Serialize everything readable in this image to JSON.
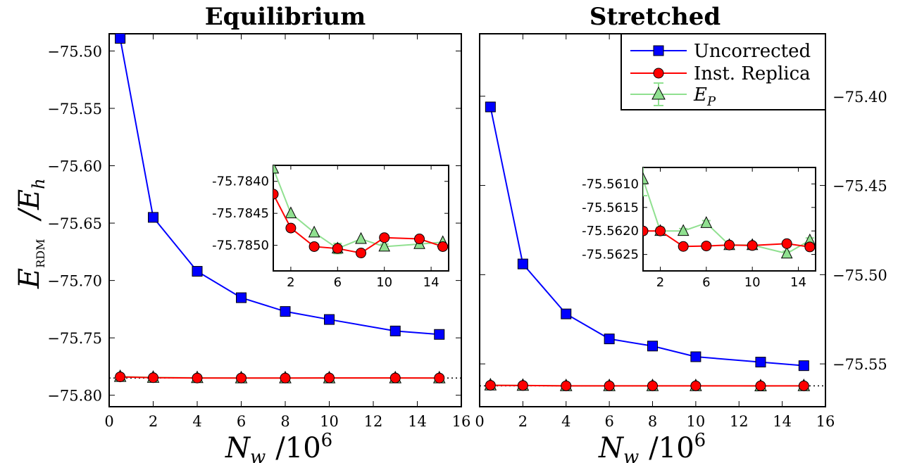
{
  "colors": {
    "uncorrected": "#0000ff",
    "replica": "#ff0000",
    "ep_fill": "#90e090",
    "ep_line": "#90e090",
    "marker_edge": "#000000"
  },
  "axes_text": {
    "ylabel_main": "E",
    "ylabel_sub": "RDM",
    "ylabel_unit": "/E",
    "ylabel_unit_sub": "h",
    "xlabel_main": "N",
    "xlabel_sub": "w",
    "xlabel_unit": "/10",
    "xlabel_exp": "6"
  },
  "legend": {
    "placement": "top-right of right panel",
    "entries": [
      {
        "label": "Uncorrected",
        "marker": "square",
        "color": "#0000ff"
      },
      {
        "label": "Inst. Replica",
        "marker": "circle",
        "color": "#ff0000"
      },
      {
        "label": "E",
        "label_sub": "P",
        "marker": "triangle",
        "color": "#90e090"
      }
    ]
  },
  "chart_data": [
    {
      "type": "line",
      "title": "Equilibrium",
      "xlim": [
        0,
        16
      ],
      "ylim": [
        -75.81,
        -75.485
      ],
      "xticks": [
        "0",
        "2",
        "4",
        "6",
        "8",
        "10",
        "12",
        "14",
        "16"
      ],
      "yticks": [
        "-75.50",
        "-75.55",
        "-75.60",
        "-75.65",
        "-75.70",
        "-75.75",
        "-75.80"
      ],
      "reference_line": -75.785,
      "series": [
        {
          "name": "Uncorrected",
          "x": [
            0.5,
            2,
            4,
            6,
            8,
            10,
            13,
            15
          ],
          "y": [
            -75.489,
            -75.645,
            -75.692,
            -75.715,
            -75.727,
            -75.734,
            -75.744,
            -75.747
          ]
        },
        {
          "name": "Inst. Replica",
          "x": [
            0.5,
            2,
            4,
            6,
            8,
            10,
            13,
            15
          ],
          "y": [
            -75.784,
            -75.7847,
            -75.785,
            -75.785,
            -75.785,
            -75.7849,
            -75.7849,
            -75.785
          ]
        },
        {
          "name": "E_P",
          "x": [
            0.5,
            2,
            4,
            6,
            8,
            10,
            13,
            15
          ],
          "y": [
            -75.7838,
            -75.7845,
            -75.7848,
            -75.785,
            -75.785,
            -75.785,
            -75.785,
            -75.785
          ]
        }
      ],
      "inset": {
        "xlim": [
          0.5,
          15.5
        ],
        "ylim": [
          -75.7854,
          -75.78375
        ],
        "xticks": [
          "2",
          "6",
          "10",
          "14"
        ],
        "yticks": [
          "-75.7840",
          "-75.7845",
          "-75.7850"
        ],
        "series": [
          {
            "name": "Inst. Replica",
            "x": [
              0.5,
              2,
              4,
              6,
              8,
              10,
              13,
              15
            ],
            "y": [
              -75.7842,
              -75.78473,
              -75.78502,
              -75.78505,
              -75.78512,
              -75.78488,
              -75.7849,
              -75.78502
            ]
          },
          {
            "name": "E_P",
            "x": [
              0.5,
              2,
              4,
              6,
              8,
              10,
              13,
              15
            ],
            "y": [
              -75.7838,
              -75.7845,
              -75.7848,
              -75.78505,
              -75.7849,
              -75.78502,
              -75.78498,
              -75.78495
            ],
            "err": [
              0,
              0,
              0,
              8e-05,
              0,
              4e-05,
              0,
              0
            ]
          }
        ]
      }
    },
    {
      "type": "line",
      "title": "Stretched",
      "xlim": [
        0,
        16
      ],
      "ylim": [
        -75.574,
        -75.365
      ],
      "xticks": [
        "0",
        "2",
        "4",
        "6",
        "8",
        "10",
        "12",
        "14",
        "16"
      ],
      "yticks": [
        "-75.40",
        "-75.45",
        "-75.50",
        "-75.55"
      ],
      "y_axis_side": "right",
      "reference_line": -75.5623,
      "series": [
        {
          "name": "Uncorrected",
          "x": [
            0.5,
            2,
            4,
            6,
            8,
            10,
            13,
            15
          ],
          "y": [
            -75.406,
            -75.494,
            -75.522,
            -75.536,
            -75.54,
            -75.546,
            -75.549,
            -75.551
          ]
        },
        {
          "name": "Inst. Replica",
          "x": [
            0.5,
            2,
            4,
            6,
            8,
            10,
            13,
            15
          ],
          "y": [
            -75.562,
            -75.5621,
            -75.5623,
            -75.5623,
            -75.5623,
            -75.5623,
            -75.5623,
            -75.5623
          ]
        },
        {
          "name": "E_P",
          "x": [
            0.5,
            2,
            4,
            6,
            8,
            10,
            13,
            15
          ],
          "y": [
            -75.5619,
            -75.5621,
            -75.5623,
            -75.5623,
            -75.5623,
            -75.5623,
            -75.5624,
            -75.5623
          ]
        }
      ],
      "inset": {
        "xlim": [
          0.5,
          15.5
        ],
        "ylim": [
          -75.56285,
          -75.56065
        ],
        "xticks": [
          "2",
          "6",
          "10",
          "14"
        ],
        "yticks": [
          "-75.5610",
          "-75.5615",
          "-75.5620",
          "-75.5625"
        ],
        "series": [
          {
            "name": "Inst. Replica",
            "x": [
              0.5,
              2,
              4,
              6,
              8,
              10,
              13,
              15
            ],
            "y": [
              -75.562,
              -75.562,
              -75.56233,
              -75.56232,
              -75.5623,
              -75.56231,
              -75.56227,
              -75.56234
            ]
          },
          {
            "name": "E_P",
            "x": [
              0.5,
              2,
              4,
              6,
              8,
              10,
              13,
              15
            ],
            "y": [
              -75.5609,
              -75.562,
              -75.562,
              -75.56183,
              -75.5623,
              -75.5623,
              -75.56248,
              -75.5622
            ],
            "err": [
              0.00035,
              8e-05,
              5e-05,
              5e-05,
              6e-05,
              3e-05,
              5e-05,
              5e-05
            ]
          }
        ]
      }
    }
  ]
}
